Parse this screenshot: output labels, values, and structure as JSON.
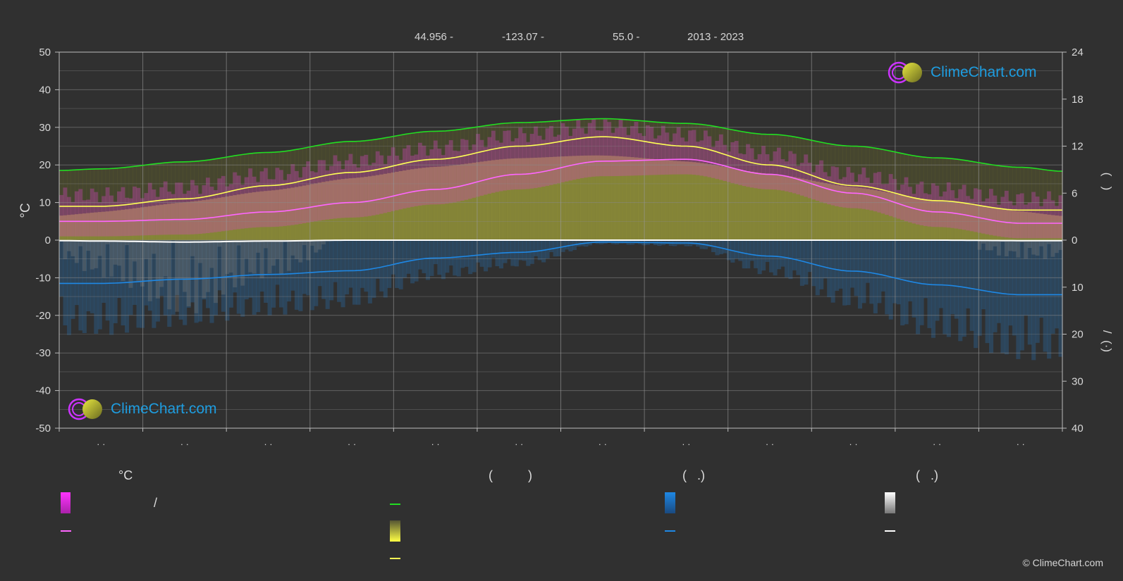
{
  "header": {
    "lat": "44.956 -",
    "lon": "-123.07 -",
    "elev": "55.0 -",
    "years": "2013 - 2023"
  },
  "logo_text": "ClimeChart.com",
  "copyright": "© ClimeChart.com",
  "colors": {
    "daylight": "#22dd22",
    "max_temp": "#ffff55",
    "min_temp": "#ff66ff",
    "rain": "#1e88e5",
    "snow": "#ffffff",
    "bg": "#303030",
    "logo": "#1e9de0"
  },
  "legend": {
    "temp_heading": "°C",
    "sun_heading": "(          )",
    "rain_heading": "(   .)",
    "snow_heading": "(   .)",
    "slash": "/"
  },
  "chart_data": {
    "type": "line",
    "left_axis": {
      "label": "°C",
      "ylim": [
        -50,
        50
      ],
      "ticks": [
        "50",
        "40",
        "30",
        "20",
        "10",
        "0",
        "-10",
        "-20",
        "-30",
        "-40",
        "-50"
      ]
    },
    "right_axis_top": {
      "ylim": [
        0,
        24
      ],
      "ticks": [
        "24",
        "18",
        "12",
        "6",
        "0"
      ],
      "label_marks": "(   )"
    },
    "right_axis_bottom": {
      "ylim": [
        0,
        40
      ],
      "ticks": [
        "10",
        "20",
        "30",
        "40"
      ],
      "label_marks": "/  (·)"
    },
    "x_tick_labels": [
      "· ·",
      "· ·",
      "· ·",
      "· ·",
      "· ·",
      "· ·",
      "· ·",
      "· ·",
      "· ·",
      "· ·",
      "· ·",
      "· ·"
    ],
    "grid": true,
    "series": [
      {
        "key": "daylight",
        "axis": "right_top",
        "x": [
          0,
          0.5,
          1.5,
          2.5,
          3.5,
          4.5,
          5.5,
          6.5,
          7.5,
          8.5,
          9.5,
          10.5,
          11.5,
          12
        ],
        "values": [
          8.9,
          9.1,
          10.0,
          11.2,
          12.6,
          13.9,
          15.0,
          15.5,
          14.9,
          13.5,
          12.0,
          10.5,
          9.3,
          8.8
        ]
      },
      {
        "key": "max_temp",
        "axis": "left",
        "x": [
          0,
          0.5,
          1.5,
          2.5,
          3.5,
          4.5,
          5.5,
          6.5,
          7.5,
          8.5,
          9.5,
          10.5,
          11.5,
          12
        ],
        "values": [
          9,
          9,
          11,
          14.5,
          18,
          21.5,
          25,
          27.5,
          25,
          20,
          14.5,
          10.5,
          8,
          8
        ]
      },
      {
        "key": "min_temp",
        "axis": "left",
        "x": [
          0,
          0.5,
          1.5,
          2.5,
          3.5,
          4.5,
          5.5,
          6.5,
          7.5,
          8.5,
          9.5,
          10.5,
          11.5,
          12
        ],
        "values": [
          5,
          5,
          5.5,
          7.5,
          10,
          13.5,
          17.5,
          21,
          21.5,
          17.5,
          12.5,
          7.5,
          4.5,
          4.5
        ]
      },
      {
        "key": "rain",
        "axis": "right_bottom",
        "x": [
          0,
          0.5,
          1.5,
          2.5,
          3.5,
          4.5,
          5.5,
          6.5,
          7.5,
          8.5,
          9.5,
          10.5,
          11.5,
          12
        ],
        "values": [
          9.2,
          9.2,
          8.3,
          7.3,
          6.5,
          3.8,
          2.6,
          0.4,
          0.6,
          3.4,
          6.6,
          9.5,
          11.6,
          11.6
        ]
      },
      {
        "key": "snow",
        "axis": "right_bottom",
        "x": [
          0,
          0.5,
          1.5,
          2.5,
          3.5,
          4.5,
          5.5,
          6.5,
          7.5,
          8.5,
          9.5,
          10.5,
          11.5,
          12
        ],
        "values": [
          0.1,
          0.2,
          0.4,
          0.2,
          0,
          0,
          0,
          0,
          0,
          0,
          0,
          0,
          0.1,
          0.1
        ]
      }
    ]
  }
}
